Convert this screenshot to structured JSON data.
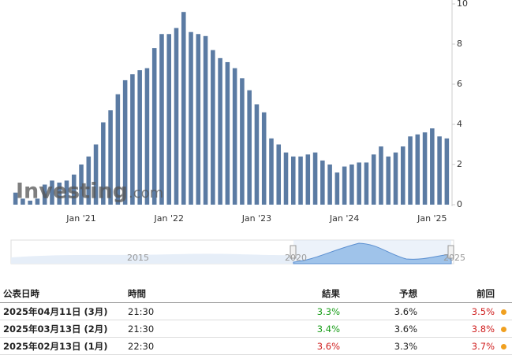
{
  "chart_data": {
    "type": "bar",
    "color": "#5b7ba3",
    "categories": [
      null,
      null,
      null,
      null,
      null,
      null,
      null,
      null,
      null,
      "Jan '21",
      null,
      null,
      null,
      null,
      null,
      null,
      null,
      null,
      null,
      null,
      null,
      "Jan '22",
      null,
      null,
      null,
      null,
      null,
      null,
      null,
      null,
      null,
      null,
      null,
      "Jan '23",
      null,
      null,
      null,
      null,
      null,
      null,
      null,
      null,
      null,
      null,
      null,
      "Jan '24",
      null,
      null,
      null,
      null,
      null,
      null,
      null,
      null,
      null,
      null,
      null,
      "Jan '25",
      null,
      null
    ],
    "values": [
      0.6,
      0.3,
      0.2,
      0.3,
      1.0,
      1.2,
      1.1,
      1.2,
      1.5,
      2.0,
      2.4,
      3.0,
      4.1,
      4.7,
      5.5,
      6.2,
      6.5,
      6.7,
      6.8,
      7.8,
      8.5,
      8.5,
      8.8,
      9.6,
      8.6,
      8.5,
      8.4,
      7.7,
      7.3,
      7.1,
      6.8,
      6.3,
      5.7,
      5.0,
      4.6,
      3.3,
      3.0,
      2.6,
      2.4,
      2.4,
      2.5,
      2.6,
      2.2,
      2.0,
      1.6,
      1.9,
      2.0,
      2.1,
      2.1,
      2.5,
      2.9,
      2.4,
      2.6,
      2.9,
      3.4,
      3.5,
      3.6,
      3.8,
      3.4,
      3.3
    ],
    "ylim": [
      0,
      10
    ],
    "yticks": [
      0,
      2,
      4,
      6,
      8,
      10
    ],
    "grid": false,
    "watermark": "Investing",
    "watermark_suffix": ".com",
    "navigator_labels": [
      "2015",
      "2020",
      "2025"
    ]
  },
  "table": {
    "headers": [
      "公表日時",
      "時間",
      "結果",
      "予想",
      "前回"
    ],
    "rows": [
      {
        "date": "2025年04月11日 (3月)",
        "time": "21:30",
        "actual": "3.3%",
        "forecast": "3.6%",
        "previous": "3.5%",
        "actual_color": "#1a9e1a",
        "previous_color": "#d02020"
      },
      {
        "date": "2025年03月13日 (2月)",
        "time": "21:30",
        "actual": "3.4%",
        "forecast": "3.6%",
        "previous": "3.8%",
        "actual_color": "#1a9e1a",
        "previous_color": "#d02020"
      },
      {
        "date": "2025年02月13日 (1月)",
        "time": "22:30",
        "actual": "3.6%",
        "forecast": "3.3%",
        "previous": "3.7%",
        "actual_color": "#d02020",
        "previous_color": "#d02020"
      }
    ]
  }
}
